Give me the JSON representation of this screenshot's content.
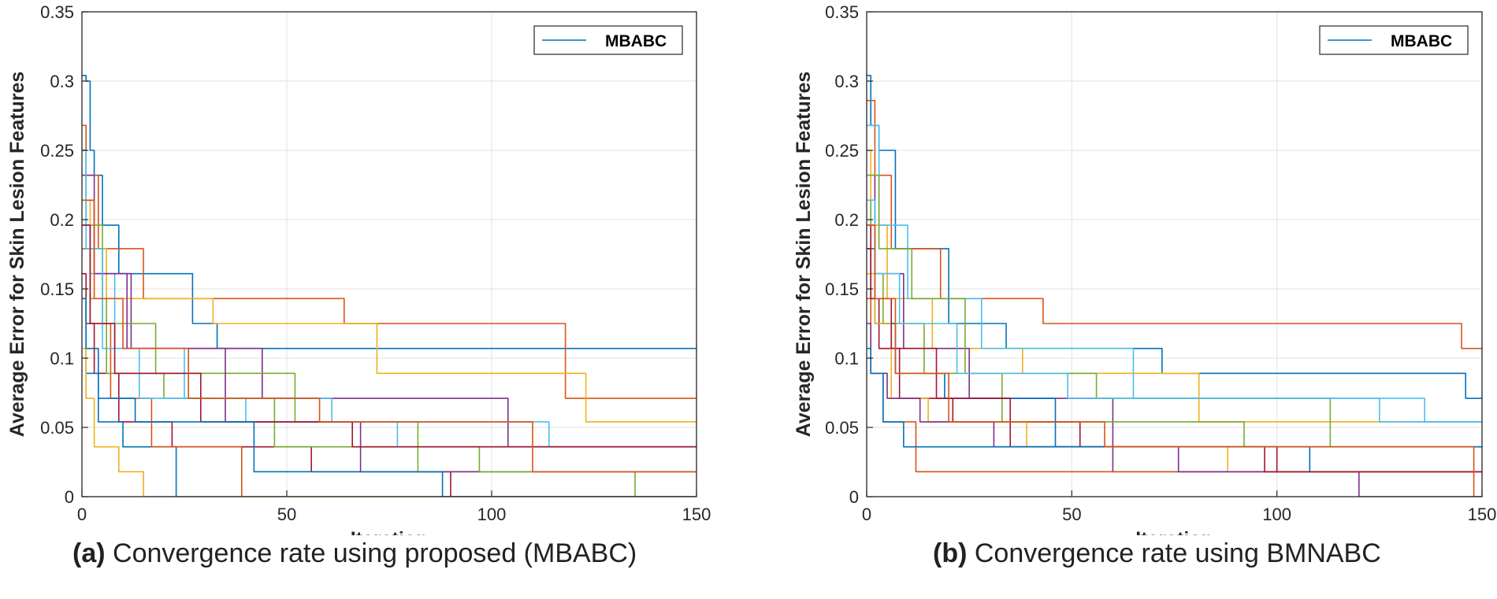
{
  "colors": {
    "palette": [
      "#0072BD",
      "#D95319",
      "#EDB120",
      "#7E2F8E",
      "#77AC30",
      "#4DBEEE",
      "#A2142F"
    ],
    "grid": "#e6e6e6",
    "axis": "#262626",
    "legend_line": "#0072BD"
  },
  "chart_data": [
    {
      "type": "line",
      "panel_label": "(a)",
      "caption": "Convergence rate using proposed (MBABC)",
      "xlabel": "Iteration",
      "ylabel": "Average Error for Skin Lesion Features",
      "xlim": [
        0,
        150
      ],
      "ylim": [
        0,
        0.35
      ],
      "xticks": [
        0,
        50,
        100,
        150
      ],
      "xtick_labels": [
        "0",
        "50",
        "100",
        "150"
      ],
      "yticks": [
        0,
        0.05,
        0.1,
        0.15,
        0.2,
        0.25,
        0.3,
        0.35
      ],
      "ytick_labels": [
        "0",
        "0.05",
        "0.1",
        "0.15",
        "0.2",
        "0.25",
        "0.3",
        "0.35"
      ],
      "grid": true,
      "legend": {
        "position": "top-right",
        "entries": [
          "MBABC"
        ]
      },
      "series": [
        {
          "x": [
            0,
            1,
            1,
            2,
            2,
            3,
            3,
            5,
            5,
            9,
            9,
            27,
            27,
            33,
            33,
            92,
            92,
            150
          ],
          "y": [
            0.304,
            0.304,
            0.3,
            0.3,
            0.25,
            0.25,
            0.232,
            0.232,
            0.196,
            0.196,
            0.161,
            0.161,
            0.125,
            0.125,
            0.107,
            0.107,
            0.107,
            0.107
          ]
        },
        {
          "x": [
            0,
            1,
            1,
            4,
            4,
            15,
            15,
            64,
            64,
            118,
            118,
            150
          ],
          "y": [
            0.268,
            0.268,
            0.232,
            0.232,
            0.179,
            0.179,
            0.143,
            0.143,
            0.125,
            0.125,
            0.071,
            0.071
          ]
        },
        {
          "x": [
            0,
            2,
            2,
            6,
            6,
            32,
            32,
            72,
            72,
            123,
            123,
            150
          ],
          "y": [
            0.214,
            0.214,
            0.179,
            0.179,
            0.143,
            0.143,
            0.125,
            0.125,
            0.089,
            0.089,
            0.054,
            0.054
          ]
        },
        {
          "x": [
            0,
            1,
            1,
            3,
            3,
            12,
            12,
            44,
            44,
            104,
            104,
            150
          ],
          "y": [
            0.25,
            0.25,
            0.214,
            0.214,
            0.161,
            0.161,
            0.107,
            0.107,
            0.071,
            0.071,
            0.036,
            0.036
          ]
        },
        {
          "x": [
            0,
            1,
            1,
            5,
            5,
            18,
            18,
            52,
            52,
            82,
            82,
            135,
            135,
            150
          ],
          "y": [
            0.232,
            0.232,
            0.196,
            0.196,
            0.125,
            0.125,
            0.089,
            0.089,
            0.054,
            0.054,
            0.018,
            0.018,
            0.0,
            0.0
          ]
        },
        {
          "x": [
            0,
            2,
            2,
            8,
            8,
            25,
            25,
            61,
            61,
            114,
            114,
            150
          ],
          "y": [
            0.196,
            0.196,
            0.161,
            0.161,
            0.107,
            0.107,
            0.071,
            0.071,
            0.054,
            0.054,
            0.036,
            0.036
          ]
        },
        {
          "x": [
            0,
            1,
            1,
            3,
            3,
            9,
            9,
            22,
            22,
            56,
            56,
            90,
            90,
            150
          ],
          "y": [
            0.161,
            0.161,
            0.125,
            0.125,
            0.089,
            0.089,
            0.054,
            0.054,
            0.036,
            0.036,
            0.018,
            0.018,
            0.0,
            0.0
          ]
        },
        {
          "x": [
            0,
            1,
            1,
            4,
            4,
            10,
            10,
            23,
            23,
            150
          ],
          "y": [
            0.143,
            0.143,
            0.089,
            0.089,
            0.054,
            0.054,
            0.036,
            0.036,
            0.0,
            0.0
          ]
        },
        {
          "x": [
            0,
            2,
            2,
            7,
            7,
            17,
            17,
            39,
            39,
            150
          ],
          "y": [
            0.179,
            0.179,
            0.125,
            0.125,
            0.071,
            0.071,
            0.036,
            0.036,
            0.0,
            0.0
          ]
        },
        {
          "x": [
            0,
            1,
            1,
            3,
            3,
            9,
            9,
            15,
            15,
            150
          ],
          "y": [
            0.107,
            0.107,
            0.071,
            0.071,
            0.036,
            0.036,
            0.018,
            0.018,
            0.0,
            0.0
          ]
        },
        {
          "x": [
            0,
            3,
            3,
            11,
            11,
            35,
            35,
            68,
            68,
            150
          ],
          "y": [
            0.232,
            0.232,
            0.161,
            0.161,
            0.107,
            0.107,
            0.054,
            0.054,
            0.018,
            0.018
          ]
        },
        {
          "x": [
            0,
            2,
            2,
            6,
            6,
            20,
            20,
            47,
            47,
            97,
            97,
            150
          ],
          "y": [
            0.179,
            0.179,
            0.143,
            0.143,
            0.089,
            0.089,
            0.071,
            0.071,
            0.036,
            0.036,
            0.018,
            0.018
          ]
        },
        {
          "x": [
            0,
            1,
            1,
            5,
            5,
            14,
            14,
            40,
            40,
            77,
            77,
            150
          ],
          "y": [
            0.25,
            0.25,
            0.179,
            0.179,
            0.107,
            0.107,
            0.071,
            0.071,
            0.054,
            0.054,
            0.036,
            0.036
          ]
        },
        {
          "x": [
            0,
            2,
            2,
            8,
            8,
            29,
            29,
            66,
            66,
            150
          ],
          "y": [
            0.196,
            0.196,
            0.125,
            0.125,
            0.089,
            0.089,
            0.054,
            0.054,
            0.036,
            0.036
          ]
        },
        {
          "x": [
            0,
            1,
            1,
            4,
            4,
            13,
            13,
            42,
            42,
            88,
            88,
            150
          ],
          "y": [
            0.143,
            0.143,
            0.107,
            0.107,
            0.071,
            0.071,
            0.054,
            0.054,
            0.018,
            0.018,
            0.0,
            0.0
          ]
        },
        {
          "x": [
            0,
            3,
            3,
            10,
            10,
            26,
            26,
            58,
            58,
            110,
            110,
            150
          ],
          "y": [
            0.214,
            0.214,
            0.143,
            0.143,
            0.107,
            0.107,
            0.071,
            0.071,
            0.054,
            0.054,
            0.018,
            0.018
          ]
        }
      ]
    },
    {
      "type": "line",
      "panel_label": "(b)",
      "caption": "Convergence rate using BMNABC",
      "xlabel": "Iteration",
      "ylabel": "Average Error for Skin Lesion Features",
      "xlim": [
        0,
        150
      ],
      "ylim": [
        0,
        0.35
      ],
      "xticks": [
        0,
        50,
        100,
        150
      ],
      "xtick_labels": [
        "0",
        "50",
        "100",
        "150"
      ],
      "yticks": [
        0,
        0.05,
        0.1,
        0.15,
        0.2,
        0.25,
        0.3,
        0.35
      ],
      "ytick_labels": [
        "0",
        "0.05",
        "0.1",
        "0.15",
        "0.2",
        "0.25",
        "0.3",
        "0.35"
      ],
      "grid": true,
      "legend": {
        "position": "top-right",
        "entries": [
          "MBABC"
        ]
      },
      "series": [
        {
          "x": [
            0,
            1,
            1,
            3,
            3,
            7,
            7,
            20,
            20,
            34,
            34,
            72,
            72,
            146,
            146,
            150
          ],
          "y": [
            0.304,
            0.304,
            0.268,
            0.268,
            0.25,
            0.25,
            0.179,
            0.179,
            0.125,
            0.125,
            0.107,
            0.107,
            0.089,
            0.089,
            0.071,
            0.071
          ]
        },
        {
          "x": [
            0,
            2,
            2,
            6,
            6,
            18,
            18,
            43,
            43,
            145,
            145,
            150
          ],
          "y": [
            0.286,
            0.286,
            0.232,
            0.232,
            0.179,
            0.179,
            0.143,
            0.143,
            0.125,
            0.125,
            0.107,
            0.107
          ]
        },
        {
          "x": [
            0,
            1,
            1,
            5,
            5,
            16,
            16,
            38,
            38,
            81,
            81,
            150
          ],
          "y": [
            0.25,
            0.25,
            0.196,
            0.196,
            0.143,
            0.143,
            0.107,
            0.107,
            0.089,
            0.089,
            0.054,
            0.054
          ]
        },
        {
          "x": [
            0,
            2,
            2,
            9,
            9,
            25,
            25,
            60,
            60,
            120,
            120,
            150
          ],
          "y": [
            0.232,
            0.232,
            0.161,
            0.161,
            0.107,
            0.107,
            0.071,
            0.071,
            0.018,
            0.018,
            0.0,
            0.0
          ]
        },
        {
          "x": [
            0,
            1,
            1,
            4,
            4,
            14,
            14,
            33,
            33,
            92,
            92,
            150
          ],
          "y": [
            0.214,
            0.214,
            0.161,
            0.161,
            0.125,
            0.125,
            0.089,
            0.089,
            0.054,
            0.054,
            0.036,
            0.036
          ]
        },
        {
          "x": [
            0,
            3,
            3,
            10,
            10,
            28,
            28,
            65,
            65,
            125,
            125,
            150
          ],
          "y": [
            0.268,
            0.268,
            0.196,
            0.196,
            0.143,
            0.143,
            0.107,
            0.107,
            0.071,
            0.071,
            0.054,
            0.054
          ]
        },
        {
          "x": [
            0,
            1,
            1,
            3,
            3,
            8,
            8,
            21,
            21,
            52,
            52,
            100,
            100,
            150
          ],
          "y": [
            0.196,
            0.196,
            0.143,
            0.143,
            0.107,
            0.107,
            0.071,
            0.071,
            0.054,
            0.054,
            0.036,
            0.036,
            0.018,
            0.018
          ]
        },
        {
          "x": [
            0,
            2,
            2,
            7,
            7,
            19,
            19,
            46,
            46,
            108,
            108,
            150
          ],
          "y": [
            0.179,
            0.179,
            0.125,
            0.125,
            0.089,
            0.089,
            0.071,
            0.071,
            0.036,
            0.036,
            0.018,
            0.018
          ]
        },
        {
          "x": [
            0,
            1,
            1,
            4,
            4,
            12,
            12,
            150
          ],
          "y": [
            0.143,
            0.143,
            0.089,
            0.089,
            0.054,
            0.054,
            0.018,
            0.018
          ]
        },
        {
          "x": [
            0,
            2,
            2,
            6,
            6,
            15,
            15,
            39,
            39,
            88,
            88,
            150
          ],
          "y": [
            0.161,
            0.161,
            0.125,
            0.125,
            0.071,
            0.071,
            0.054,
            0.054,
            0.036,
            0.036,
            0.018,
            0.018
          ]
        },
        {
          "x": [
            0,
            1,
            1,
            5,
            5,
            13,
            13,
            31,
            31,
            76,
            76,
            150
          ],
          "y": [
            0.125,
            0.125,
            0.089,
            0.089,
            0.071,
            0.071,
            0.054,
            0.054,
            0.036,
            0.036,
            0.018,
            0.018
          ]
        },
        {
          "x": [
            0,
            3,
            3,
            11,
            11,
            24,
            24,
            56,
            56,
            113,
            113,
            150
          ],
          "y": [
            0.232,
            0.232,
            0.179,
            0.179,
            0.143,
            0.143,
            0.089,
            0.089,
            0.071,
            0.071,
            0.036,
            0.036
          ]
        },
        {
          "x": [
            0,
            2,
            2,
            8,
            8,
            22,
            22,
            49,
            49,
            136,
            136,
            150
          ],
          "y": [
            0.214,
            0.214,
            0.161,
            0.161,
            0.125,
            0.125,
            0.089,
            0.089,
            0.071,
            0.071,
            0.054,
            0.054
          ]
        },
        {
          "x": [
            0,
            1,
            1,
            6,
            6,
            17,
            17,
            35,
            35,
            97,
            97,
            150
          ],
          "y": [
            0.179,
            0.179,
            0.143,
            0.143,
            0.107,
            0.107,
            0.071,
            0.071,
            0.036,
            0.036,
            0.018,
            0.018
          ]
        },
        {
          "x": [
            0,
            1,
            1,
            4,
            4,
            9,
            9,
            150
          ],
          "y": [
            0.107,
            0.107,
            0.089,
            0.089,
            0.054,
            0.054,
            0.036,
            0.036
          ]
        },
        {
          "x": [
            0,
            2,
            2,
            7,
            7,
            20,
            20,
            58,
            58,
            148,
            148,
            150
          ],
          "y": [
            0.196,
            0.196,
            0.143,
            0.143,
            0.089,
            0.089,
            0.054,
            0.054,
            0.036,
            0.036,
            0.0,
            0.0
          ]
        }
      ]
    }
  ]
}
